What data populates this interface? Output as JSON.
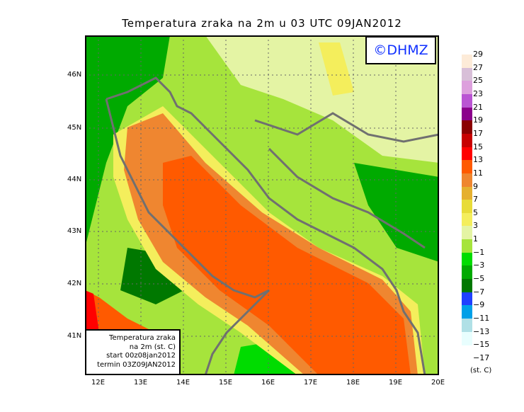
{
  "title": "Temperatura zraka na 2m u 03 UTC 09JAN2012",
  "logo": "©DHMZ",
  "info_box": [
    "Temperatura zraka",
    "na 2m (st. C)",
    "start 00z08jan2012",
    "termin 03Z09JAN2012"
  ],
  "lon_labels": [
    "12E",
    "13E",
    "14E",
    "15E",
    "16E",
    "17E",
    "18E",
    "19E",
    "20E"
  ],
  "lat_labels": [
    "46N",
    "45N",
    "44N",
    "43N",
    "42N",
    "41N"
  ],
  "legend": {
    "unit": "(st. C)",
    "values": [
      "29",
      "27",
      "25",
      "23",
      "21",
      "19",
      "17",
      "15",
      "13",
      "11",
      "9",
      "7",
      "5",
      "3",
      "1",
      "−1",
      "−3",
      "−5",
      "−7",
      "−9",
      "−11",
      "−13",
      "−15",
      "−17"
    ],
    "colors": [
      "#fdebd8",
      "#d8bfd8",
      "#dda0dd",
      "#ba55d3",
      "#8b008b",
      "#8b0000",
      "#c80000",
      "#ff0000",
      "#ff5a00",
      "#ef8630",
      "#e5b030",
      "#e8dc38",
      "#f4ee5c",
      "#e4f4a4",
      "#a6e43c",
      "#00dc00",
      "#00aa00",
      "#007800",
      "#2040ff",
      "#00a0e8",
      "#b0e0e6",
      "#e8fefe"
    ]
  }
}
